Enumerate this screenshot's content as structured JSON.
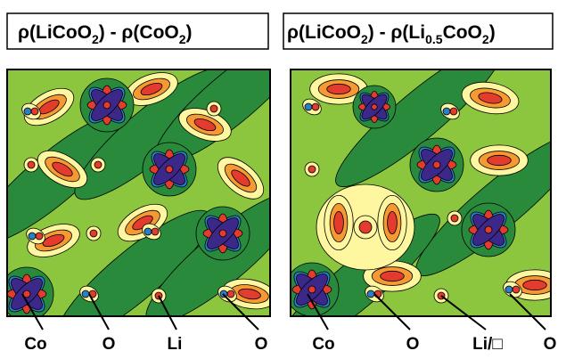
{
  "panels": [
    {
      "title_parts": [
        "ρ(LiCoO",
        "2",
        ") - ρ(CoO",
        "2",
        ")"
      ],
      "labels": [
        "Co",
        "O",
        "Li",
        "O"
      ]
    },
    {
      "title_parts": [
        "ρ(LiCoO",
        "2",
        ") - ρ(Li",
        "0.5",
        "CoO",
        "2",
        ")"
      ],
      "labels": [
        "Co",
        "O",
        "Li/□",
        "O"
      ]
    }
  ]
}
